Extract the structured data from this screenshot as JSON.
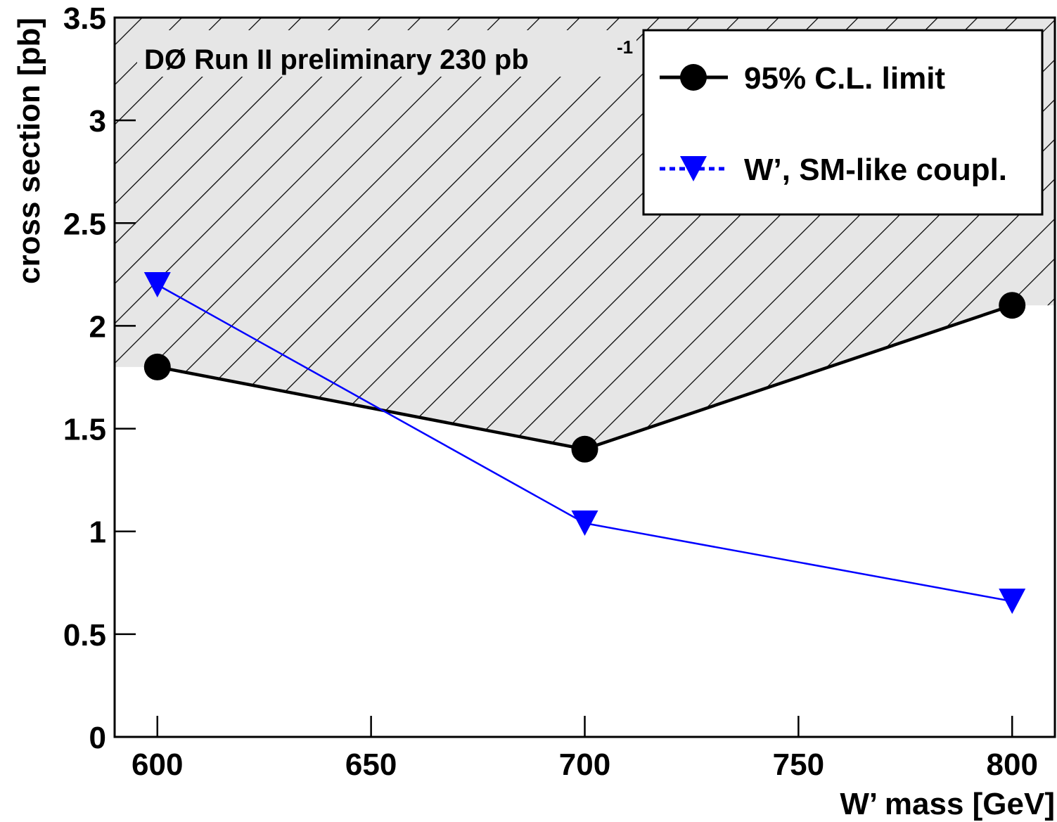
{
  "chart_data": {
    "type": "line",
    "title": "DØ Run II preliminary 230 pb",
    "title_superscript": "-1",
    "x_label": "W’ mass [GeV]",
    "y_label": "cross section [pb]",
    "x": [
      600,
      700,
      800
    ],
    "series": [
      {
        "name": "95% C.L. limit",
        "color": "#000000",
        "marker": "circle",
        "values": [
          1.8,
          1.4,
          2.1
        ],
        "hatched_above": true
      },
      {
        "name": "W’, SM-like coupl.",
        "color": "#0000ff",
        "marker": "triangle-down",
        "values": [
          2.2,
          1.04,
          0.66
        ]
      }
    ],
    "xlim": [
      590,
      810
    ],
    "xticks": [
      600,
      650,
      700,
      750,
      800
    ],
    "ylim": [
      0,
      3.5
    ],
    "yticks": [
      0,
      0.5,
      1,
      1.5,
      2,
      2.5,
      3,
      3.5
    ],
    "grid": false,
    "legend": "upper right"
  }
}
